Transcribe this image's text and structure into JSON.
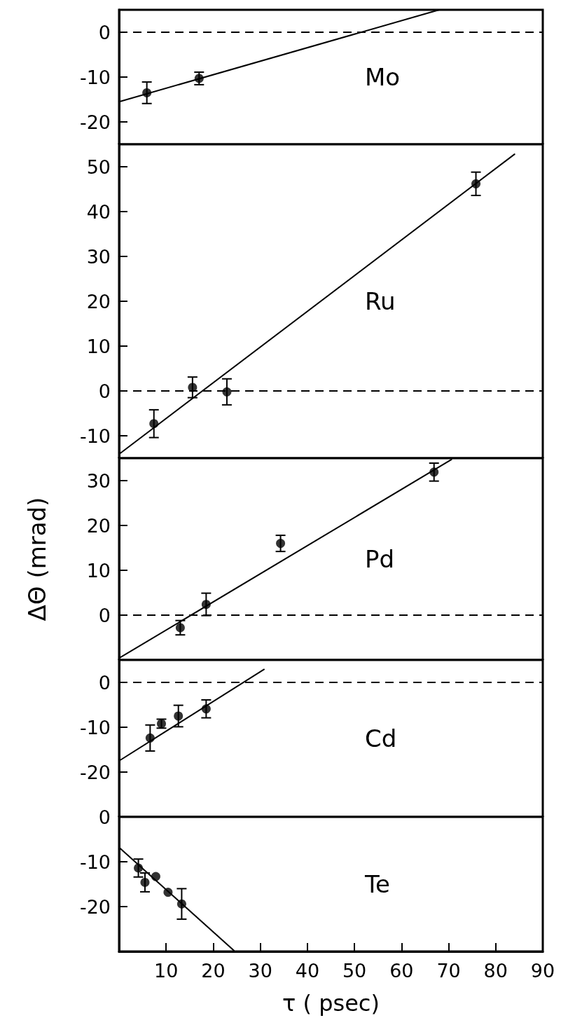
{
  "chart_data": [
    {
      "type": "scatter",
      "annotations": [
        "Mo"
      ],
      "xlim": [
        0,
        90
      ],
      "ylim": [
        -25,
        5
      ],
      "yticks": [
        -20,
        -10,
        0
      ],
      "tick_labels": "y",
      "marker": "circle",
      "ref_lines": [
        {
          "axis": "y",
          "value": 0,
          "line_style": "dashed"
        }
      ],
      "series": [
        {
          "color": "#000000",
          "x": [
            5.9,
            17.0
          ],
          "values": [
            -13.5,
            -10.3
          ],
          "errors": [
            2.4,
            1.4
          ]
        },
        {
          "type": "line",
          "color": "#000000",
          "marker": "none",
          "x": [
            0,
            68
          ],
          "values": [
            -15.5,
            5
          ]
        }
      ]
    },
    {
      "type": "scatter",
      "annotations": [
        "Ru"
      ],
      "xlim": [
        0,
        90
      ],
      "ylim": [
        -15,
        55
      ],
      "yticks": [
        -10,
        0,
        10,
        20,
        30,
        40,
        50
      ],
      "tick_labels": "y",
      "marker": "circle",
      "ref_lines": [
        {
          "axis": "y",
          "value": 0,
          "line_style": "dashed"
        }
      ],
      "series": [
        {
          "color": "#000000",
          "x": [
            7.4,
            15.6,
            22.9,
            75.8
          ],
          "values": [
            -7.3,
            0.8,
            -0.2,
            46.2
          ],
          "errors": [
            3.1,
            2.3,
            2.9,
            2.6
          ]
        },
        {
          "type": "line",
          "color": "#000000",
          "marker": "none",
          "x": [
            0,
            84
          ],
          "values": [
            -14.1,
            52.8
          ]
        }
      ]
    },
    {
      "type": "scatter",
      "annotations": [
        "Pd"
      ],
      "ylabel": "ΔΘ (mrad)",
      "xlim": [
        0,
        90
      ],
      "ylim": [
        -10,
        35
      ],
      "yticks": [
        0,
        10,
        20,
        30
      ],
      "tick_labels": "y",
      "marker": "circle",
      "ref_lines": [
        {
          "axis": "y",
          "value": 0,
          "line_style": "dashed"
        }
      ],
      "series": [
        {
          "color": "#000000",
          "x": [
            13.0,
            18.5,
            34.3,
            66.9
          ],
          "values": [
            -2.8,
            2.4,
            16.0,
            31.9
          ],
          "errors": [
            1.6,
            2.5,
            1.8,
            2.0
          ]
        },
        {
          "type": "line",
          "color": "#000000",
          "marker": "none",
          "x": [
            0,
            70.6
          ],
          "values": [
            -9.6,
            34.7
          ]
        }
      ]
    },
    {
      "type": "scatter",
      "annotations": [
        "Cd"
      ],
      "xlim": [
        0,
        90
      ],
      "ylim": [
        -30,
        5
      ],
      "yticks": [
        -20,
        -10,
        0
      ],
      "tick_labels": "y",
      "marker": "circle",
      "ref_lines": [
        {
          "axis": "y",
          "value": 0,
          "line_style": "dashed"
        }
      ],
      "series": [
        {
          "color": "#000000",
          "x": [
            6.6,
            9.0,
            12.6,
            18.5
          ],
          "values": [
            -12.4,
            -9.2,
            -7.5,
            -5.9
          ],
          "errors": [
            2.9,
            1.0,
            2.4,
            2.0
          ]
        },
        {
          "type": "line",
          "color": "#000000",
          "marker": "none",
          "x": [
            0,
            30.8
          ],
          "values": [
            -17.5,
            2.9
          ]
        }
      ]
    },
    {
      "type": "scatter",
      "annotations": [
        "Te"
      ],
      "xlabel": "τ ( psec)",
      "xlim": [
        0,
        90
      ],
      "xticks": [
        10,
        20,
        30,
        40,
        50,
        60,
        70,
        80,
        90
      ],
      "ylim": [
        -30,
        0
      ],
      "yticks": [
        -20,
        -10,
        0
      ],
      "marker": "circle",
      "series": [
        {
          "color": "#000000",
          "x": [
            4.1,
            5.5,
            7.8,
            10.4,
            13.3
          ],
          "values": [
            -11.4,
            -14.6,
            -13.3,
            -16.8,
            -19.4
          ],
          "errors": [
            2.0,
            2.1,
            null,
            null,
            3.4
          ]
        },
        {
          "type": "line",
          "color": "#000000",
          "marker": "none",
          "x": [
            0,
            24.4
          ],
          "values": [
            -6.8,
            -29.8
          ]
        }
      ]
    }
  ]
}
